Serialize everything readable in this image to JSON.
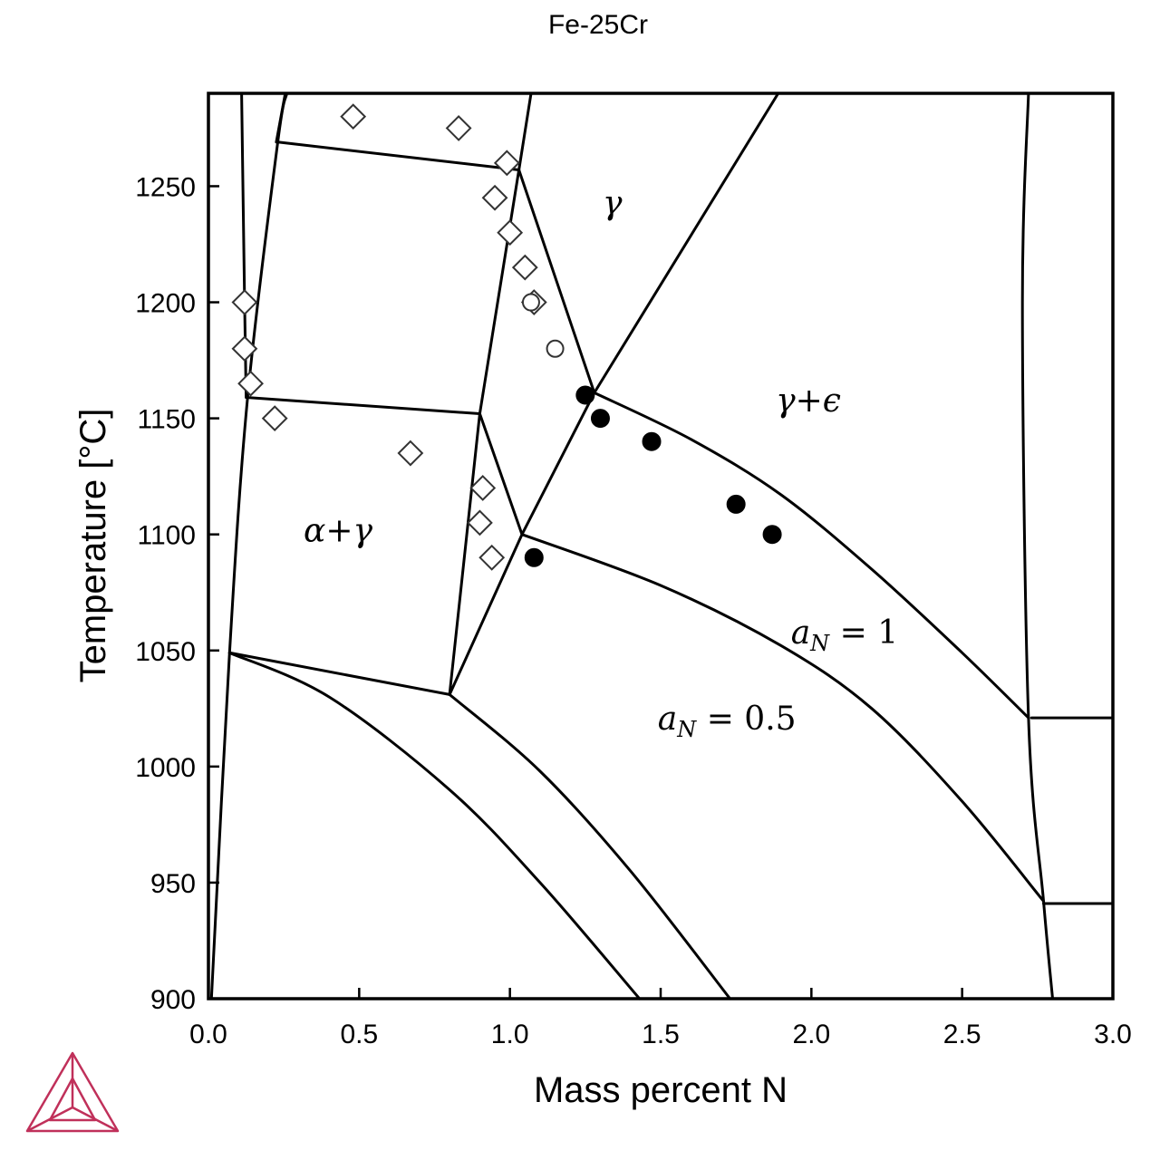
{
  "chart_data": {
    "type": "scatter",
    "title": "Fe-25Cr",
    "xlabel": "Mass percent N",
    "ylabel": "Temperature [°C]",
    "xlim": [
      0.0,
      3.0
    ],
    "ylim": [
      900,
      1290
    ],
    "x_ticks": [
      0.0,
      0.5,
      1.0,
      1.5,
      2.0,
      2.5,
      3.0
    ],
    "x_tick_labels": [
      "0.0",
      "0.5",
      "1.0",
      "1.5",
      "2.0",
      "2.5",
      "3.0"
    ],
    "y_ticks": [
      900,
      950,
      1000,
      1050,
      1100,
      1150,
      1200,
      1250
    ],
    "y_tick_labels": [
      "900",
      "950",
      "1000",
      "1050",
      "1100",
      "1150",
      "1200",
      "1250"
    ],
    "grid": false,
    "legend": "none",
    "region_labels": [
      {
        "text": "α+γ",
        "x": 0.43,
        "y": 1097
      },
      {
        "text": "γ",
        "x": 1.34,
        "y": 1238
      },
      {
        "text": "γ+ϵ",
        "x": 1.99,
        "y": 1153
      },
      {
        "text_main": "a",
        "text_sub": "N",
        "text_rest": " = 1",
        "x": 2.11,
        "y": 1053
      },
      {
        "text_main": "a",
        "text_sub": "N",
        "text_rest": " = 0.5",
        "x": 1.72,
        "y": 1016
      }
    ],
    "phase_boundaries": [
      {
        "points": [
          [
            0.01,
            900
          ],
          [
            0.07,
            1049
          ],
          [
            0.13,
            1159
          ],
          [
            0.23,
            1269
          ],
          [
            0.26,
            1290
          ]
        ]
      },
      {
        "points": [
          [
            0.11,
            1290
          ],
          [
            0.12,
            1200
          ],
          [
            0.125,
            1159
          ]
        ]
      },
      {
        "points": [
          [
            0.225,
            1269
          ],
          [
            0.255,
            1290
          ]
        ]
      },
      {
        "points": [
          [
            0.23,
            1269
          ],
          [
            1.03,
            1257
          ]
        ]
      },
      {
        "points": [
          [
            1.03,
            1257
          ],
          [
            1.07,
            1290
          ]
        ]
      },
      {
        "points": [
          [
            1.03,
            1257
          ],
          [
            0.9,
            1152
          ],
          [
            0.8,
            1031
          ]
        ]
      },
      {
        "points": [
          [
            0.13,
            1159
          ],
          [
            0.9,
            1152
          ]
        ]
      },
      {
        "points": [
          [
            0.07,
            1049
          ],
          [
            0.8,
            1031
          ]
        ]
      },
      {
        "points": [
          [
            0.9,
            1152
          ],
          [
            1.04,
            1100
          ]
        ]
      },
      {
        "points": [
          [
            1.03,
            1257
          ],
          [
            1.28,
            1161
          ]
        ]
      },
      {
        "points": [
          [
            1.28,
            1161
          ],
          [
            1.89,
            1290
          ]
        ]
      },
      {
        "points": [
          [
            0.8,
            1031
          ],
          [
            1.04,
            1100
          ],
          [
            1.28,
            1161
          ]
        ]
      },
      {
        "points": [
          [
            1.28,
            1161
          ],
          [
            1.6,
            1141
          ],
          [
            1.9,
            1117
          ],
          [
            2.2,
            1085
          ],
          [
            2.5,
            1049
          ],
          [
            2.72,
            1021
          ]
        ]
      },
      {
        "points": [
          [
            1.04,
            1100
          ],
          [
            1.5,
            1078
          ],
          [
            1.9,
            1052
          ],
          [
            2.2,
            1025
          ],
          [
            2.5,
            985
          ],
          [
            2.77,
            942
          ]
        ]
      },
      {
        "points": [
          [
            0.07,
            1049
          ],
          [
            0.4,
            1030
          ],
          [
            0.8,
            990
          ],
          [
            1.1,
            950
          ],
          [
            1.43,
            900
          ]
        ]
      },
      {
        "points": [
          [
            0.8,
            1031
          ],
          [
            1.1,
            998
          ],
          [
            1.4,
            955
          ],
          [
            1.73,
            900
          ]
        ]
      },
      {
        "points": [
          [
            2.72,
            1290
          ],
          [
            2.7,
            1200
          ],
          [
            2.72,
            1021
          ],
          [
            2.77,
            942
          ],
          [
            2.8,
            900
          ]
        ]
      },
      {
        "points": [
          [
            2.73,
            1021
          ],
          [
            3.0,
            1021
          ]
        ]
      },
      {
        "points": [
          [
            2.77,
            941
          ],
          [
            3.0,
            941
          ]
        ]
      }
    ],
    "series": [
      {
        "marker": "diamond-open",
        "points": [
          [
            0.48,
            1280
          ],
          [
            0.83,
            1275
          ],
          [
            0.99,
            1260
          ],
          [
            0.95,
            1245
          ],
          [
            1.0,
            1230
          ],
          [
            1.05,
            1215
          ],
          [
            1.08,
            1200
          ],
          [
            0.12,
            1200
          ],
          [
            0.12,
            1180
          ],
          [
            0.14,
            1165
          ],
          [
            0.22,
            1150
          ],
          [
            0.67,
            1135
          ],
          [
            0.91,
            1120
          ],
          [
            0.9,
            1105
          ],
          [
            0.94,
            1090
          ]
        ]
      },
      {
        "marker": "circle-open",
        "points": [
          [
            1.07,
            1200
          ],
          [
            1.15,
            1180
          ]
        ]
      },
      {
        "marker": "circle-filled",
        "points": [
          [
            1.25,
            1160
          ],
          [
            1.3,
            1150
          ],
          [
            1.47,
            1140
          ],
          [
            1.75,
            1113
          ],
          [
            1.87,
            1100
          ],
          [
            1.08,
            1090
          ]
        ]
      }
    ],
    "colors": {
      "lines": "#000000",
      "logo": "#c0305a"
    }
  }
}
